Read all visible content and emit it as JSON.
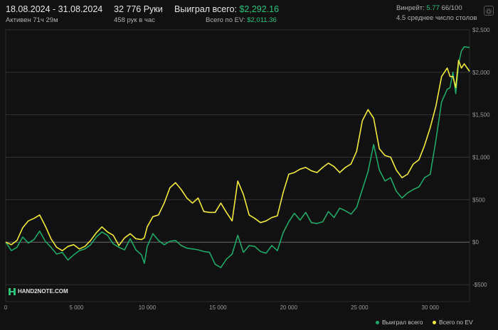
{
  "header": {
    "date_range": "18.08.2024 - 31.08.2024",
    "active_time": "Активен 71ч 29м",
    "hands": "32 776 Руки",
    "hands_per_hour": "458 рук в час",
    "won_label": "Выиграл всего:",
    "won_value": "$2,292.16",
    "ev_label": "Всего по EV:",
    "ev_value": "$2,011.36",
    "winrate_label": "Винрейт:",
    "winrate_value": "5.77",
    "winrate_suffix": "66/100",
    "avg_tables": "4.5 среднее число столов"
  },
  "logo_text": "HAND2NOTE.COM",
  "colors": {
    "won": "#1fa866",
    "ev": "#f2ea3c",
    "accent": "#2bc47a",
    "grid": "#333333",
    "zero_line": "#6a6a6a"
  },
  "chart_data": {
    "type": "line",
    "xlim": [
      0,
      32776
    ],
    "ylim": [
      -700,
      2500
    ],
    "x_ticks": [
      0,
      5000,
      10000,
      15000,
      20000,
      25000,
      30000
    ],
    "x_tick_labels": [
      "0",
      "5 000",
      "10 000",
      "15 000",
      "20 000",
      "25 000",
      "30 000"
    ],
    "y_ticks": [
      -500,
      0,
      500,
      1000,
      1500,
      2000,
      2500
    ],
    "y_tick_labels": [
      "-$500",
      "$0",
      "$500",
      "$1,000",
      "$1,500",
      "$2,000",
      "$2,500"
    ],
    "grid": true,
    "legend": "bottom-right",
    "series": [
      {
        "name": "Выиграл всего",
        "color": "#1fa866",
        "x": [
          0,
          400,
          800,
          1200,
          1600,
          2000,
          2400,
          2800,
          3200,
          3600,
          4000,
          4400,
          4800,
          5200,
          5600,
          6000,
          6400,
          6800,
          7200,
          7600,
          8000,
          8400,
          8800,
          9200,
          9600,
          9800,
          10000,
          10400,
          10800,
          11200,
          11600,
          12000,
          12400,
          12800,
          13200,
          13600,
          14000,
          14400,
          14800,
          15200,
          15600,
          16000,
          16400,
          16800,
          17200,
          17600,
          18000,
          18400,
          18800,
          19200,
          19600,
          20000,
          20400,
          20800,
          21200,
          21600,
          22000,
          22400,
          22800,
          23200,
          23600,
          24000,
          24400,
          24800,
          25200,
          25600,
          26000,
          26400,
          26800,
          27200,
          27600,
          28000,
          28400,
          28800,
          29200,
          29600,
          30000,
          30400,
          30800,
          31200,
          31400,
          31600,
          31800,
          32000,
          32200,
          32400,
          32776
        ],
        "values": [
          0,
          -100,
          -60,
          60,
          -10,
          30,
          130,
          10,
          -60,
          -140,
          -120,
          -210,
          -150,
          -100,
          -80,
          -30,
          60,
          120,
          80,
          -20,
          -60,
          -90,
          40,
          -90,
          -150,
          -250,
          -50,
          100,
          20,
          -30,
          10,
          20,
          -40,
          -70,
          -80,
          -90,
          -110,
          -120,
          -260,
          -300,
          -200,
          -140,
          80,
          -120,
          -40,
          -50,
          -110,
          -130,
          -40,
          -100,
          110,
          240,
          340,
          260,
          350,
          230,
          220,
          240,
          360,
          290,
          400,
          370,
          330,
          410,
          620,
          830,
          1150,
          850,
          720,
          760,
          600,
          520,
          580,
          620,
          650,
          760,
          800,
          1200,
          1650,
          1800,
          1820,
          2000,
          1750,
          2100,
          2250,
          2300,
          2292.16
        ]
      },
      {
        "name": "Всего по EV",
        "color": "#f2ea3c",
        "x": [
          0,
          400,
          800,
          1200,
          1600,
          2000,
          2400,
          2800,
          3200,
          3600,
          4000,
          4400,
          4800,
          5200,
          5600,
          6000,
          6400,
          6800,
          7200,
          7600,
          8000,
          8400,
          8800,
          9200,
          9600,
          9800,
          10000,
          10400,
          10800,
          11200,
          11600,
          12000,
          12400,
          12800,
          13200,
          13600,
          14000,
          14400,
          14800,
          15200,
          15600,
          16000,
          16400,
          16800,
          17200,
          17600,
          18000,
          18400,
          18800,
          19200,
          19600,
          20000,
          20400,
          20800,
          21200,
          21600,
          22000,
          22400,
          22800,
          23200,
          23600,
          24000,
          24400,
          24800,
          25200,
          25600,
          26000,
          26400,
          26800,
          27200,
          27600,
          28000,
          28400,
          28800,
          29200,
          29600,
          30000,
          30400,
          30800,
          31200,
          31400,
          31600,
          31800,
          32000,
          32200,
          32400,
          32776
        ],
        "values": [
          0,
          -30,
          20,
          170,
          250,
          280,
          320,
          190,
          40,
          -60,
          -100,
          -50,
          -30,
          -80,
          -50,
          20,
          110,
          180,
          120,
          80,
          -40,
          50,
          100,
          40,
          30,
          50,
          180,
          300,
          320,
          460,
          640,
          700,
          620,
          520,
          460,
          520,
          360,
          350,
          350,
          460,
          350,
          250,
          720,
          560,
          320,
          280,
          230,
          250,
          290,
          310,
          580,
          800,
          820,
          860,
          880,
          840,
          820,
          880,
          930,
          890,
          820,
          880,
          920,
          1070,
          1430,
          1560,
          1460,
          1100,
          1020,
          1000,
          850,
          760,
          800,
          920,
          970,
          1140,
          1350,
          1600,
          1950,
          2050,
          1950,
          1950,
          1820,
          2140,
          2050,
          2100,
          2011.36
        ]
      }
    ]
  }
}
